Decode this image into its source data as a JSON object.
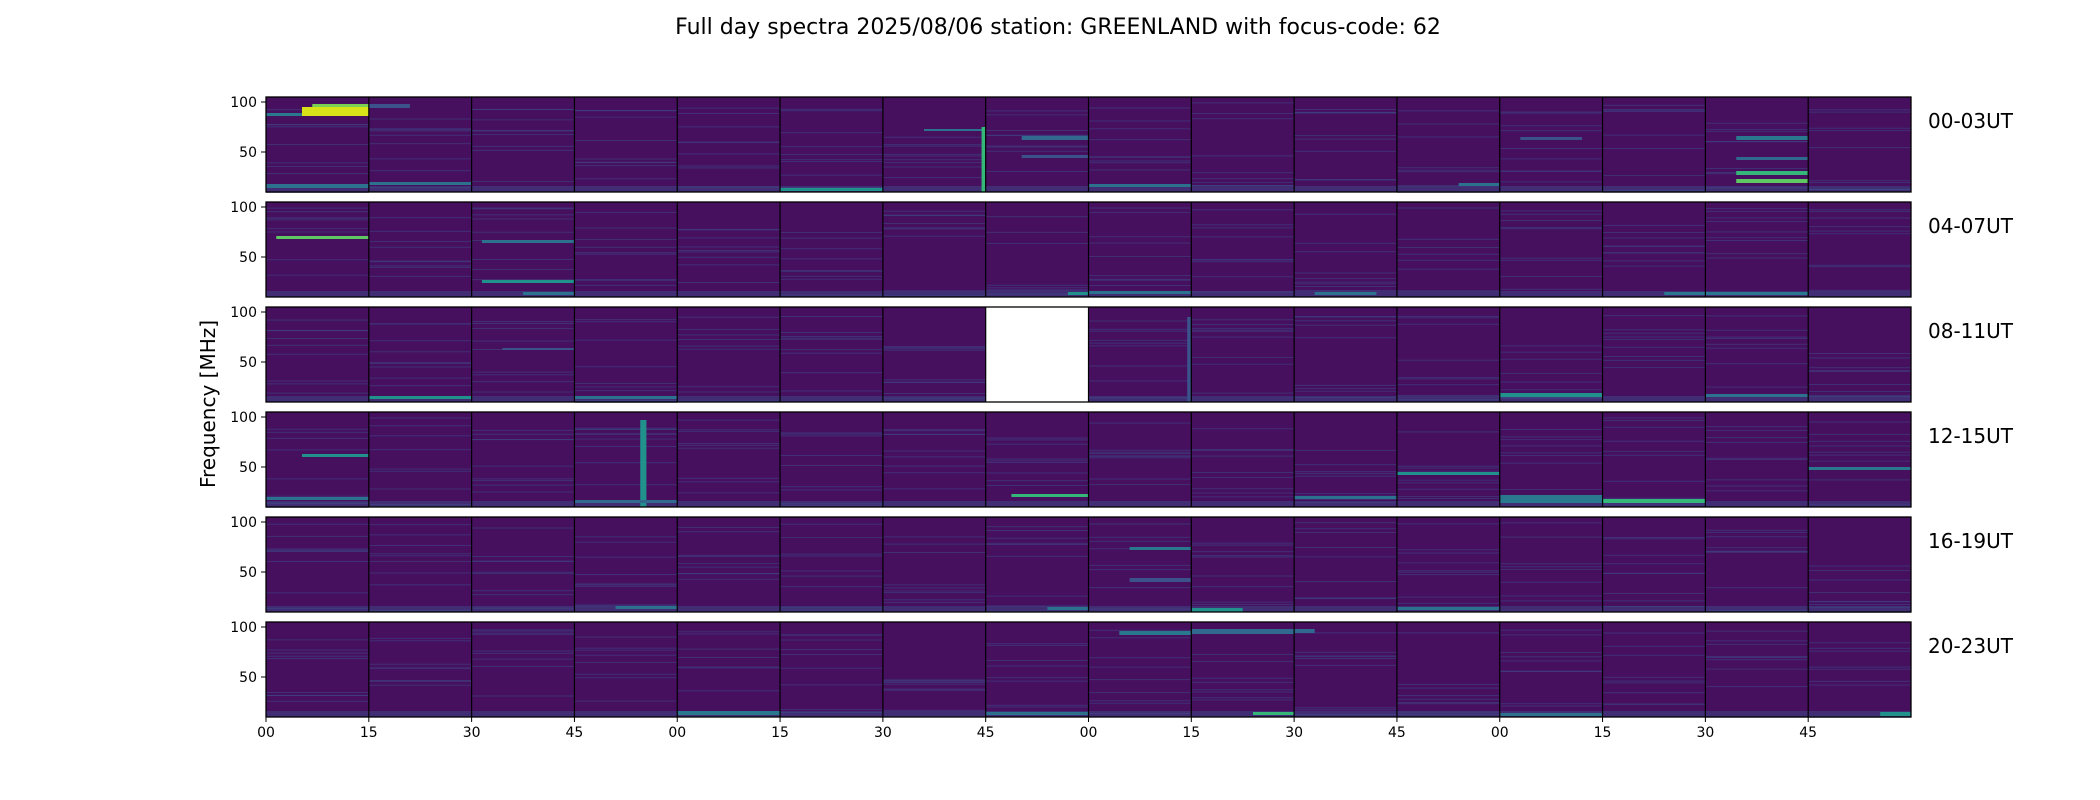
{
  "chart_data": {
    "type": "heatmap",
    "title": "Full day spectra 2025/08/06 station: GREENLAND with focus-code: 62",
    "ylabel": "Frequency [MHz]",
    "ylim": [
      10,
      105
    ],
    "y_ticks": [
      "100",
      "50"
    ],
    "y_tick_values": [
      100,
      50
    ],
    "x_tick_labels": [
      "00",
      "15",
      "30",
      "45",
      "00",
      "15",
      "30",
      "45",
      "00",
      "15",
      "30",
      "45",
      "00",
      "15",
      "30",
      "45"
    ],
    "colormap": "viridis",
    "background_color": "#46105f",
    "grid": false,
    "legend": "none",
    "rows": [
      {
        "label": "00-03UT",
        "missing_panels": []
      },
      {
        "label": "04-07UT",
        "missing_panels": []
      },
      {
        "label": "08-11UT",
        "missing_panels": [
          7
        ]
      },
      {
        "label": "12-15UT",
        "missing_panels": []
      },
      {
        "label": "16-19UT",
        "missing_panels": []
      },
      {
        "label": "20-23UT",
        "missing_panels": []
      }
    ],
    "panels_per_row": 16,
    "features": [
      {
        "row": 0,
        "panel": 0,
        "type": "hband",
        "f0": 86,
        "f1": 95,
        "t0": 0.35,
        "t1": 1.0,
        "color": "#d8e219"
      },
      {
        "row": 0,
        "panel": 0,
        "type": "hband",
        "f0": 95,
        "f1": 98,
        "t0": 0.45,
        "t1": 1.0,
        "color": "#7ad151"
      },
      {
        "row": 0,
        "panel": 0,
        "type": "hband",
        "f0": 86,
        "f1": 89,
        "t0": 0.0,
        "t1": 0.35,
        "color": "#2a788e"
      },
      {
        "row": 0,
        "panel": 0,
        "type": "hband",
        "f0": 14,
        "f1": 18,
        "t0": 0.0,
        "t1": 1.0,
        "color": "#2c728e"
      },
      {
        "row": 0,
        "panel": 1,
        "type": "hband",
        "f0": 94,
        "f1": 98,
        "t0": 0.0,
        "t1": 0.4,
        "color": "#3b528b"
      },
      {
        "row": 0,
        "panel": 1,
        "type": "hband",
        "f0": 17,
        "f1": 20,
        "t0": 0.0,
        "t1": 1.0,
        "color": "#2c728e"
      },
      {
        "row": 0,
        "panel": 5,
        "type": "hband",
        "f0": 11,
        "f1": 14,
        "t0": 0.0,
        "t1": 1.0,
        "color": "#21918c"
      },
      {
        "row": 0,
        "panel": 6,
        "type": "hband",
        "f0": 71,
        "f1": 73,
        "t0": 0.4,
        "t1": 1.0,
        "color": "#2c728e"
      },
      {
        "row": 0,
        "panel": 6,
        "type": "vband",
        "f0": 10,
        "f1": 75,
        "t0": 0.96,
        "t1": 1.0,
        "color": "#35b779"
      },
      {
        "row": 0,
        "panel": 7,
        "type": "hband",
        "f0": 62,
        "f1": 66,
        "t0": 0.35,
        "t1": 1.0,
        "color": "#31688e"
      },
      {
        "row": 0,
        "panel": 7,
        "type": "hband",
        "f0": 44,
        "f1": 47,
        "t0": 0.35,
        "t1": 1.0,
        "color": "#3b528b"
      },
      {
        "row": 0,
        "panel": 8,
        "type": "hband",
        "f0": 15,
        "f1": 18,
        "t0": 0.0,
        "t1": 1.0,
        "color": "#2c728e"
      },
      {
        "row": 0,
        "panel": 11,
        "type": "hband",
        "f0": 16,
        "f1": 19,
        "t0": 0.6,
        "t1": 1.0,
        "color": "#2c728e"
      },
      {
        "row": 0,
        "panel": 12,
        "type": "hband",
        "f0": 62,
        "f1": 65,
        "t0": 0.2,
        "t1": 0.8,
        "color": "#3b528b"
      },
      {
        "row": 0,
        "panel": 14,
        "type": "hband",
        "f0": 62,
        "f1": 66,
        "t0": 0.3,
        "t1": 1.0,
        "color": "#2a788e"
      },
      {
        "row": 0,
        "panel": 14,
        "type": "hband",
        "f0": 27,
        "f1": 31,
        "t0": 0.3,
        "t1": 1.0,
        "color": "#35b779"
      },
      {
        "row": 0,
        "panel": 14,
        "type": "hband",
        "f0": 19,
        "f1": 23,
        "t0": 0.3,
        "t1": 1.0,
        "color": "#5ec962"
      },
      {
        "row": 0,
        "panel": 14,
        "type": "hband",
        "f0": 42,
        "f1": 45,
        "t0": 0.3,
        "t1": 1.0,
        "color": "#31688e"
      },
      {
        "row": 1,
        "panel": 0,
        "type": "hband",
        "f0": 68,
        "f1": 71,
        "t0": 0.1,
        "t1": 1.0,
        "color": "#5ec962"
      },
      {
        "row": 1,
        "panel": 2,
        "type": "hband",
        "f0": 64,
        "f1": 67,
        "t0": 0.1,
        "t1": 1.0,
        "color": "#2c728e"
      },
      {
        "row": 1,
        "panel": 2,
        "type": "hband",
        "f0": 24,
        "f1": 27,
        "t0": 0.1,
        "t1": 1.0,
        "color": "#21918c"
      },
      {
        "row": 1,
        "panel": 2,
        "type": "hband",
        "f0": 12,
        "f1": 15,
        "t0": 0.5,
        "t1": 1.0,
        "color": "#2c728e"
      },
      {
        "row": 1,
        "panel": 7,
        "type": "hband",
        "f0": 12,
        "f1": 15,
        "t0": 0.8,
        "t1": 1.0,
        "color": "#21918c"
      },
      {
        "row": 1,
        "panel": 8,
        "type": "hband",
        "f0": 13,
        "f1": 16,
        "t0": 0.0,
        "t1": 1.0,
        "color": "#2c728e"
      },
      {
        "row": 1,
        "panel": 10,
        "type": "hband",
        "f0": 12,
        "f1": 15,
        "t0": 0.2,
        "t1": 0.8,
        "color": "#2c728e"
      },
      {
        "row": 1,
        "panel": 13,
        "type": "hband",
        "f0": 12,
        "f1": 15,
        "t0": 0.6,
        "t1": 1.0,
        "color": "#2a788e"
      },
      {
        "row": 1,
        "panel": 14,
        "type": "hband",
        "f0": 12,
        "f1": 15,
        "t0": 0.0,
        "t1": 1.0,
        "color": "#2a788e"
      },
      {
        "row": 2,
        "panel": 1,
        "type": "hband",
        "f0": 13,
        "f1": 16,
        "t0": 0.0,
        "t1": 1.0,
        "color": "#21918c"
      },
      {
        "row": 2,
        "panel": 2,
        "type": "hband",
        "f0": 62,
        "f1": 64,
        "t0": 0.3,
        "t1": 1.0,
        "color": "#3b528b"
      },
      {
        "row": 2,
        "panel": 3,
        "type": "hband",
        "f0": 13,
        "f1": 16,
        "t0": 0.0,
        "t1": 1.0,
        "color": "#2c728e"
      },
      {
        "row": 2,
        "panel": 8,
        "type": "vband",
        "f0": 10,
        "f1": 95,
        "t0": 0.96,
        "t1": 1.0,
        "color": "#3b528b"
      },
      {
        "row": 2,
        "panel": 12,
        "type": "hband",
        "f0": 15,
        "f1": 19,
        "t0": 0.0,
        "t1": 1.0,
        "color": "#21918c"
      },
      {
        "row": 2,
        "panel": 14,
        "type": "hband",
        "f0": 15,
        "f1": 18,
        "t0": 0.0,
        "t1": 1.0,
        "color": "#2c728e"
      },
      {
        "row": 3,
        "panel": 0,
        "type": "hband",
        "f0": 60,
        "f1": 63,
        "t0": 0.35,
        "t1": 1.0,
        "color": "#21918c"
      },
      {
        "row": 3,
        "panel": 0,
        "type": "hband",
        "f0": 17,
        "f1": 20,
        "t0": 0.0,
        "t1": 1.0,
        "color": "#2c728e"
      },
      {
        "row": 3,
        "panel": 3,
        "type": "vband",
        "f0": 10,
        "f1": 97,
        "t0": 0.64,
        "t1": 0.7,
        "color": "#21918c"
      },
      {
        "row": 3,
        "panel": 3,
        "type": "hband",
        "f0": 14,
        "f1": 17,
        "t0": 0.0,
        "t1": 1.0,
        "color": "#31688e"
      },
      {
        "row": 3,
        "panel": 7,
        "type": "hband",
        "f0": 20,
        "f1": 23,
        "t0": 0.25,
        "t1": 1.0,
        "color": "#35b779"
      },
      {
        "row": 3,
        "panel": 10,
        "type": "hband",
        "f0": 18,
        "f1": 21,
        "t0": 0.0,
        "t1": 1.0,
        "color": "#2c728e"
      },
      {
        "row": 3,
        "panel": 11,
        "type": "hband",
        "f0": 42,
        "f1": 45,
        "t0": 0.0,
        "t1": 1.0,
        "color": "#21918c"
      },
      {
        "row": 3,
        "panel": 12,
        "type": "hband",
        "f0": 14,
        "f1": 22,
        "t0": 0.0,
        "t1": 1.0,
        "color": "#2a788e"
      },
      {
        "row": 3,
        "panel": 13,
        "type": "hband",
        "f0": 14,
        "f1": 18,
        "t0": 0.0,
        "t1": 1.0,
        "color": "#35b779"
      },
      {
        "row": 3,
        "panel": 15,
        "type": "hband",
        "f0": 47,
        "f1": 50,
        "t0": 0.0,
        "t1": 1.0,
        "color": "#2a788e"
      },
      {
        "row": 4,
        "panel": 3,
        "type": "hband",
        "f0": 13,
        "f1": 16,
        "t0": 0.4,
        "t1": 1.0,
        "color": "#2c728e"
      },
      {
        "row": 4,
        "panel": 7,
        "type": "hband",
        "f0": 12,
        "f1": 15,
        "t0": 0.6,
        "t1": 1.0,
        "color": "#2c728e"
      },
      {
        "row": 4,
        "panel": 8,
        "type": "hband",
        "f0": 72,
        "f1": 75,
        "t0": 0.4,
        "t1": 1.0,
        "color": "#2a788e"
      },
      {
        "row": 4,
        "panel": 8,
        "type": "hband",
        "f0": 40,
        "f1": 44,
        "t0": 0.4,
        "t1": 1.0,
        "color": "#3b528b"
      },
      {
        "row": 4,
        "panel": 9,
        "type": "hband",
        "f0": 10,
        "f1": 14,
        "t0": 0.0,
        "t1": 0.5,
        "color": "#21918c"
      },
      {
        "row": 4,
        "panel": 11,
        "type": "hband",
        "f0": 12,
        "f1": 15,
        "t0": 0.0,
        "t1": 1.0,
        "color": "#2c728e"
      },
      {
        "row": 5,
        "panel": 4,
        "type": "hband",
        "f0": 12,
        "f1": 16,
        "t0": 0.0,
        "t1": 1.0,
        "color": "#2a788e"
      },
      {
        "row": 5,
        "panel": 7,
        "type": "hband",
        "f0": 12,
        "f1": 15,
        "t0": 0.0,
        "t1": 1.0,
        "color": "#2c728e"
      },
      {
        "row": 5,
        "panel": 8,
        "type": "hband",
        "f0": 92,
        "f1": 96,
        "t0": 0.3,
        "t1": 1.0,
        "color": "#2a788e"
      },
      {
        "row": 5,
        "panel": 9,
        "type": "hband",
        "f0": 93,
        "f1": 98,
        "t0": 0.0,
        "t1": 1.0,
        "color": "#31688e"
      },
      {
        "row": 5,
        "panel": 9,
        "type": "hband",
        "f0": 12,
        "f1": 15,
        "t0": 0.6,
        "t1": 1.0,
        "color": "#35b779"
      },
      {
        "row": 5,
        "panel": 10,
        "type": "hband",
        "f0": 94,
        "f1": 98,
        "t0": 0.0,
        "t1": 0.2,
        "color": "#31688e"
      },
      {
        "row": 5,
        "panel": 12,
        "type": "hband",
        "f0": 11,
        "f1": 14,
        "t0": 0.0,
        "t1": 1.0,
        "color": "#2c728e"
      },
      {
        "row": 5,
        "panel": 15,
        "type": "hband",
        "f0": 11,
        "f1": 15,
        "t0": 0.7,
        "t1": 1.0,
        "color": "#21918c"
      }
    ]
  }
}
